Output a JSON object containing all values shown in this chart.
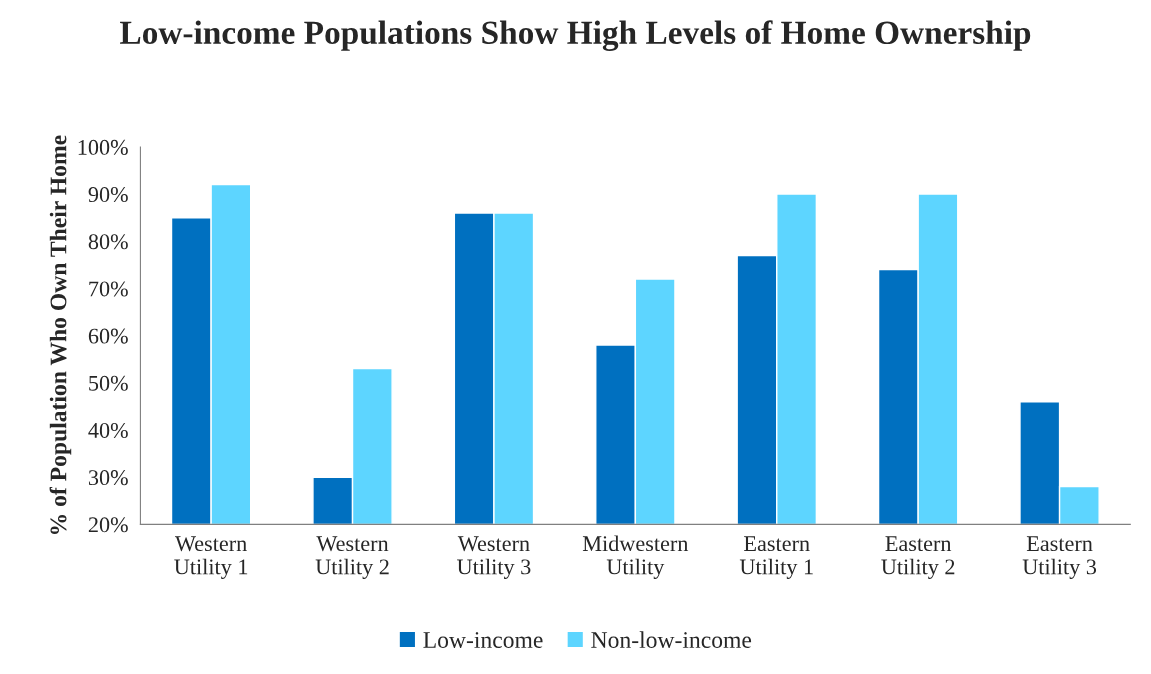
{
  "chart_data": {
    "type": "bar",
    "title": "Low-income Populations Show High Levels of Home Ownership",
    "ylabel": "% of Population Who Own Their Home",
    "categories": [
      "Western\nUtility 1",
      "Western\nUtility 2",
      "Western\nUtility 3",
      "Midwestern\nUtility",
      "Eastern\nUtility 1",
      "Eastern\nUtility 2",
      "Eastern\nUtility 3"
    ],
    "series": [
      {
        "name": "Low-income",
        "color": "#0070c0",
        "values": [
          85,
          30,
          86,
          58,
          77,
          74,
          46
        ]
      },
      {
        "name": "Non-low-income",
        "color": "#5dd5ff",
        "values": [
          92,
          53,
          86,
          72,
          90,
          90,
          28
        ]
      }
    ],
    "ylim": [
      20,
      100
    ],
    "yticks": [
      {
        "value": 20,
        "label": "20%"
      },
      {
        "value": 30,
        "label": "30%"
      },
      {
        "value": 40,
        "label": "40%"
      },
      {
        "value": 50,
        "label": "50%"
      },
      {
        "value": 60,
        "label": "60%"
      },
      {
        "value": 70,
        "label": "70%"
      },
      {
        "value": 80,
        "label": "80%"
      },
      {
        "value": 90,
        "label": "90%"
      },
      {
        "value": 100,
        "label": "100%"
      }
    ],
    "grid": false,
    "legend": "bottom"
  }
}
